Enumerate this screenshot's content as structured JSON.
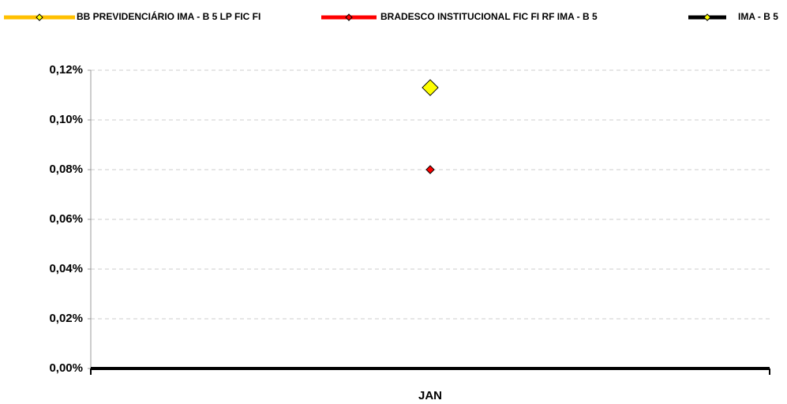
{
  "chart_data": {
    "type": "line",
    "categories": [
      "JAN"
    ],
    "series": [
      {
        "name": "BB PREVIDENCIÁRIO IMA - B 5 LP FIC FI",
        "color": "#ffc000",
        "marker_color": "#ffff00",
        "values": [
          0.113
        ]
      },
      {
        "name": "BRADESCO INSTITUCIONAL FIC FI RF IMA - B 5",
        "color": "#ff0000",
        "marker_color": "#ff0000",
        "values": [
          0.08
        ]
      },
      {
        "name": "IMA - B 5",
        "color": "#000000",
        "marker_color": "#ffff00",
        "values": [
          0.113
        ]
      }
    ],
    "ylim": [
      0,
      0.12
    ],
    "yticks": [
      {
        "value": 0,
        "label": "0,00%"
      },
      {
        "value": 0.02,
        "label": "0,02%"
      },
      {
        "value": 0.04,
        "label": "0,04%"
      },
      {
        "value": 0.06,
        "label": "0,06%"
      },
      {
        "value": 0.08,
        "label": "0,08%"
      },
      {
        "value": 0.1,
        "label": "0,10%"
      },
      {
        "value": 0.12,
        "label": "0,12%"
      }
    ],
    "grid": true,
    "legend": "top"
  }
}
